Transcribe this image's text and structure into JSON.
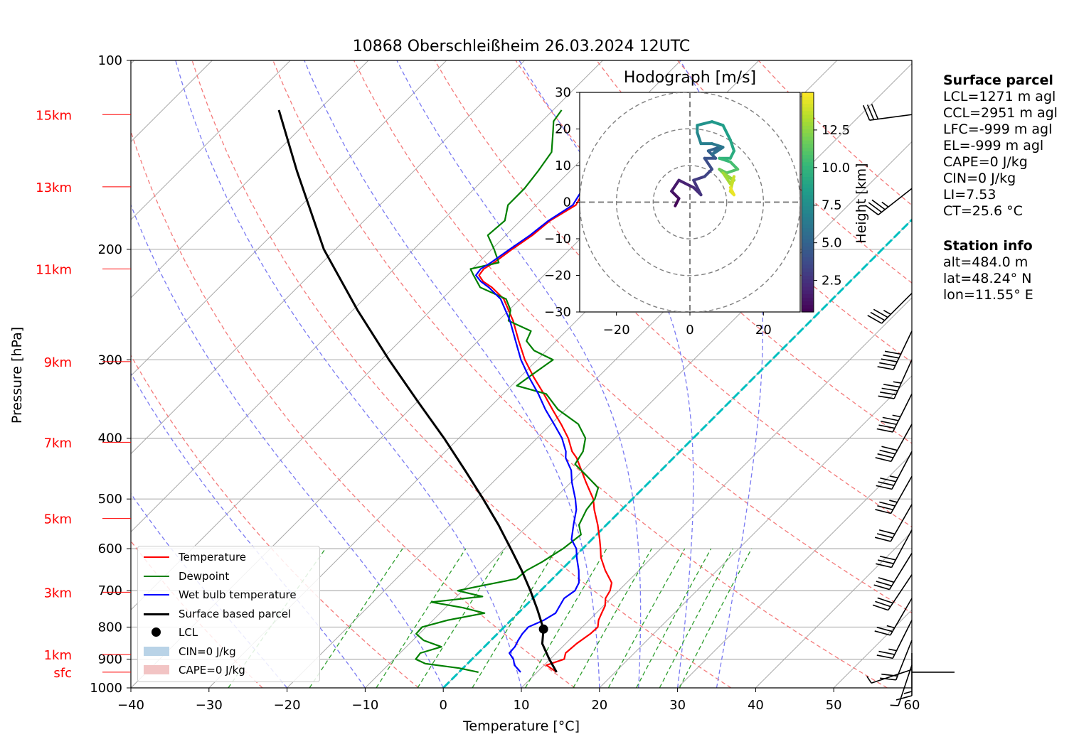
{
  "title": "10868 Oberschleißheim 26.03.2024 12UTC",
  "axes": {
    "xlabel": "Temperature [°C]",
    "ylabel": "Pressure [hPa]",
    "xlim": [
      -40,
      60
    ],
    "ylim": [
      1000,
      100
    ],
    "xticks": [
      "−40",
      "−30",
      "−20",
      "−10",
      "0",
      "10",
      "20",
      "30",
      "40",
      "50",
      "60"
    ],
    "yticks": [
      {
        "p": 100,
        "label": "100"
      },
      {
        "p": 200,
        "label": "200"
      },
      {
        "p": 300,
        "label": "300"
      },
      {
        "p": 400,
        "label": "400"
      },
      {
        "p": 500,
        "label": "500"
      },
      {
        "p": 600,
        "label": "600"
      },
      {
        "p": 700,
        "label": "700"
      },
      {
        "p": 800,
        "label": "800"
      },
      {
        "p": 900,
        "label": "900"
      },
      {
        "p": 1000,
        "label": "1000"
      }
    ],
    "height_labels": [
      {
        "label": "15km",
        "p": 122
      },
      {
        "label": "13km",
        "p": 159
      },
      {
        "label": "11km",
        "p": 215
      },
      {
        "label": "9km",
        "p": 302
      },
      {
        "label": "7km",
        "p": 406
      },
      {
        "label": "5km",
        "p": 537
      },
      {
        "label": "3km",
        "p": 704
      },
      {
        "label": "1km",
        "p": 885
      },
      {
        "label": "sfc",
        "p": 944
      }
    ]
  },
  "chart_data": [
    {
      "type": "line",
      "title": "10868 Oberschleißheim 26.03.2024 12UTC",
      "xlabel": "Temperature [°C]",
      "ylabel": "Pressure [hPa]",
      "log_y": true,
      "skew": "skew-T log-p",
      "grid": true,
      "legend_placement": "lower-left",
      "series": [
        {
          "name": "Temperature",
          "color": "#ff0000",
          "p": [
            944,
            920,
            900,
            880,
            850,
            820,
            800,
            780,
            760,
            740,
            720,
            700,
            680,
            650,
            620,
            600,
            580,
            550,
            520,
            500,
            470,
            450,
            430,
            420,
            400,
            380,
            360,
            340,
            320,
            300,
            280,
            260,
            240,
            230,
            225,
            220,
            215,
            210,
            200,
            190,
            180,
            170,
            160,
            150,
            140,
            130,
            125,
            120
          ],
          "t": [
            12.5,
            10.3,
            11.8,
            11.2,
            11.4,
            11.9,
            12.0,
            11.2,
            10.7,
            10.2,
            9.3,
            8.9,
            8.1,
            5.7,
            3.5,
            2.3,
            1.0,
            -1.1,
            -3.5,
            -5.0,
            -8.1,
            -10.2,
            -12.4,
            -13.8,
            -16.0,
            -18.7,
            -21.7,
            -24.8,
            -28.2,
            -31.6,
            -34.8,
            -38.1,
            -42.1,
            -45.1,
            -47.0,
            -48.3,
            -48.5,
            -48.0,
            -47.4,
            -46.6,
            -46.2,
            -44.9,
            -45.8,
            -46.3,
            -45.8,
            -45.2,
            -45.1,
            -44.6
          ]
        },
        {
          "name": "Dewpoint",
          "color": "#008000",
          "p": [
            944,
            930,
            915,
            900,
            880,
            860,
            840,
            820,
            800,
            780,
            760,
            745,
            730,
            715,
            700,
            690,
            670,
            650,
            630,
            600,
            570,
            550,
            520,
            500,
            480,
            460,
            440,
            420,
            400,
            380,
            360,
            340,
            330,
            320,
            300,
            290,
            280,
            270,
            260,
            250,
            240,
            230,
            220,
            215,
            210,
            200,
            190,
            180,
            170,
            160,
            150,
            140,
            130,
            125,
            120
          ],
          "t": [
            2.5,
            -0.5,
            -5.4,
            -7.2,
            -7.4,
            -5.5,
            -8.6,
            -10.4,
            -10.5,
            -8.1,
            -4.3,
            -7.8,
            -12.5,
            -6.7,
            -10.6,
            -8.7,
            -4.6,
            -4.4,
            -3.5,
            -2.5,
            -2.0,
            -3.5,
            -4.5,
            -4.8,
            -5.8,
            -8.7,
            -11.8,
            -12.4,
            -13.8,
            -16.5,
            -21.0,
            -24.5,
            -29.3,
            -28.9,
            -28.0,
            -31.6,
            -33.8,
            -34.5,
            -38.7,
            -39.8,
            -41.8,
            -46.6,
            -49.0,
            -50.2,
            -47.4,
            -49.7,
            -52.3,
            -52.0,
            -53.6,
            -53.6,
            -54.1,
            -54.8,
            -57.2,
            -58.5,
            -58.9
          ]
        },
        {
          "name": "Wet bulb temperature",
          "color": "#0000ff",
          "p": [
            944,
            920,
            900,
            880,
            860,
            840,
            820,
            800,
            780,
            760,
            740,
            720,
            700,
            680,
            650,
            620,
            600,
            580,
            550,
            520,
            500,
            470,
            450,
            430,
            420,
            400,
            380,
            360,
            340,
            320,
            300,
            280,
            260,
            240,
            230,
            225,
            220,
            215,
            210,
            200,
            190,
            180,
            170,
            160,
            150,
            140,
            130,
            125,
            120
          ],
          "t": [
            7.9,
            6.2,
            5.3,
            4.0,
            3.9,
            3.5,
            3.2,
            3.1,
            4.2,
            4.8,
            4.4,
            4.0,
            4.4,
            3.9,
            2.3,
            0.4,
            -0.8,
            -2.6,
            -4.2,
            -5.8,
            -7.3,
            -9.9,
            -11.5,
            -13.8,
            -14.6,
            -16.8,
            -19.6,
            -22.6,
            -25.5,
            -28.8,
            -32.1,
            -35.2,
            -38.5,
            -42.5,
            -45.5,
            -47.3,
            -48.7,
            -48.9,
            -48.4,
            -47.7,
            -46.9,
            -46.4,
            -45.3,
            -46.1,
            -46.6,
            -46.2,
            -45.6,
            -45.4,
            -44.9
          ]
        },
        {
          "name": "Surface based parcel",
          "color": "#000000",
          "p": [
            944,
            900,
            850,
            806,
            780,
            750,
            700,
            650,
            600,
            550,
            500,
            450,
            400,
            350,
            300,
            250,
            200,
            150,
            120
          ],
          "t": [
            12.5,
            9.9,
            7.0,
            5.3,
            3.8,
            2.0,
            -1.3,
            -5.0,
            -9.2,
            -13.8,
            -19.1,
            -25.1,
            -31.9,
            -39.9,
            -49.0,
            -59.4,
            -71.5,
            -85.0,
            -95.1
          ]
        },
        {
          "name": "LCL",
          "p": [
            806
          ],
          "t": [
            5.3
          ]
        },
        {
          "name": "CIN=0 J/kg",
          "color": "#1f77b4",
          "values": []
        },
        {
          "name": "CAPE=0 J/kg",
          "color": "#d62728",
          "values": []
        }
      ],
      "wind_barbs": [
        {
          "p": 944,
          "u": -1,
          "v": 0
        },
        {
          "p": 935,
          "u": 3,
          "v": 1
        },
        {
          "p": 920,
          "u": 1,
          "v": 3
        },
        {
          "p": 880,
          "u": 0,
          "v": 7
        },
        {
          "p": 840,
          "u": 4,
          "v": 10
        },
        {
          "p": 780,
          "u": 6,
          "v": 12
        },
        {
          "p": 720,
          "u": 7,
          "v": 12
        },
        {
          "p": 660,
          "u": 8,
          "v": 12
        },
        {
          "p": 610,
          "u": 8,
          "v": 13
        },
        {
          "p": 560,
          "u": 7,
          "v": 13
        },
        {
          "p": 510,
          "u": 8,
          "v": 14
        },
        {
          "p": 460,
          "u": 9,
          "v": 16
        },
        {
          "p": 420,
          "u": 9,
          "v": 17
        },
        {
          "p": 380,
          "u": 10,
          "v": 18
        },
        {
          "p": 340,
          "u": 10,
          "v": 20
        },
        {
          "p": 300,
          "u": 10,
          "v": 22
        },
        {
          "p": 270,
          "u": 11,
          "v": 23
        },
        {
          "p": 235,
          "u": 13,
          "v": 13
        },
        {
          "p": 160,
          "u": 14,
          "v": 11
        },
        {
          "p": 122,
          "u": 15,
          "v": 2
        }
      ],
      "dry_adiabat_thetas_k": [
        250,
        270,
        290,
        310,
        330,
        350,
        370,
        390,
        410,
        430,
        450
      ],
      "moist_adiabat_start_c": [
        -20,
        -10,
        0,
        10,
        20,
        25,
        30,
        35
      ],
      "mixing_ratios_gkg": [
        0.4,
        1,
        2,
        3,
        5,
        8,
        12,
        16,
        20,
        24,
        28
      ]
    },
    {
      "type": "scatter",
      "title": "Hodograph [m/s]",
      "xlim": [
        -30,
        30
      ],
      "ylim": [
        -30,
        30
      ],
      "xticks": [
        "−20",
        "0",
        "20"
      ],
      "yticks": [
        "30",
        "20",
        "10",
        "0",
        "−10",
        "−20",
        "−30"
      ],
      "rings": [
        10,
        20,
        30
      ],
      "colorbar_label": "Height [km]",
      "colorbar_ticks": [
        "2.5",
        "5.0",
        "7.5",
        "10.0",
        "12.5"
      ],
      "colorbar_range": [
        0.4,
        15
      ],
      "colormap": "viridis",
      "points": [
        {
          "u": -4,
          "v": -1,
          "h": 0.4
        },
        {
          "u": -3,
          "v": 1,
          "h": 0.8
        },
        {
          "u": -5,
          "v": 3,
          "h": 1.2
        },
        {
          "u": -3,
          "v": 6,
          "h": 1.6
        },
        {
          "u": 1,
          "v": 4,
          "h": 2.0
        },
        {
          "u": 3,
          "v": 2,
          "h": 2.4
        },
        {
          "u": 1,
          "v": 6,
          "h": 2.8
        },
        {
          "u": 4,
          "v": 7,
          "h": 3.2
        },
        {
          "u": 6,
          "v": 9,
          "h": 3.6
        },
        {
          "u": 4,
          "v": 12,
          "h": 4.0
        },
        {
          "u": 7,
          "v": 12,
          "h": 4.4
        },
        {
          "u": 5,
          "v": 14,
          "h": 4.8
        },
        {
          "u": 8,
          "v": 15,
          "h": 5.2
        },
        {
          "u": 6,
          "v": 13,
          "h": 5.6
        },
        {
          "u": 9,
          "v": 15,
          "h": 6.0
        },
        {
          "u": 6,
          "v": 16,
          "h": 6.4
        },
        {
          "u": 3,
          "v": 16,
          "h": 6.8
        },
        {
          "u": 2,
          "v": 19,
          "h": 7.2
        },
        {
          "u": 2,
          "v": 21,
          "h": 7.6
        },
        {
          "u": 6,
          "v": 22,
          "h": 8.0
        },
        {
          "u": 9,
          "v": 21,
          "h": 8.4
        },
        {
          "u": 11,
          "v": 17,
          "h": 8.8
        },
        {
          "u": 12,
          "v": 14,
          "h": 9.2
        },
        {
          "u": 11,
          "v": 12,
          "h": 9.6
        },
        {
          "u": 8,
          "v": 12,
          "h": 10.0
        },
        {
          "u": 11,
          "v": 11,
          "h": 10.4
        },
        {
          "u": 13,
          "v": 9,
          "h": 10.8
        },
        {
          "u": 10,
          "v": 8,
          "h": 11.2
        },
        {
          "u": 8,
          "v": 9,
          "h": 11.6
        },
        {
          "u": 10,
          "v": 7,
          "h": 12.0
        },
        {
          "u": 12,
          "v": 6,
          "h": 12.4
        },
        {
          "u": 9,
          "v": 8,
          "h": 12.8
        },
        {
          "u": 11,
          "v": 5,
          "h": 13.2
        },
        {
          "u": 12,
          "v": 7,
          "h": 13.6
        },
        {
          "u": 11,
          "v": 3,
          "h": 14.0
        },
        {
          "u": 12,
          "v": 2,
          "h": 14.4
        },
        {
          "u": 11,
          "v": 4,
          "h": 14.8
        }
      ]
    }
  ],
  "legend": [
    {
      "label": "Temperature",
      "kind": "line",
      "color": "#ff0000"
    },
    {
      "label": "Dewpoint",
      "kind": "line",
      "color": "#008000"
    },
    {
      "label": "Wet bulb temperature",
      "kind": "line",
      "color": "#0000ff"
    },
    {
      "label": "Surface based parcel",
      "kind": "line",
      "color": "#000000"
    },
    {
      "label": "LCL",
      "kind": "dot",
      "color": "#000000"
    },
    {
      "label": "CIN=0 J/kg",
      "kind": "patch",
      "color": "#b9d3e7"
    },
    {
      "label": "CAPE=0 J/kg",
      "kind": "patch",
      "color": "#f2c4c4"
    }
  ],
  "info": {
    "surface_header": "Surface parcel",
    "surface_lines": [
      "LCL=1271 m agl",
      "CCL=2951 m agl",
      "LFC=-999 m agl",
      "EL=-999 m agl",
      "CAPE=0 J/kg",
      "CIN=0 J/kg",
      "LI=7.53",
      "CT=25.6 °C"
    ],
    "station_header": "Station info",
    "station_lines": [
      "alt=484.0 m",
      "lat=48.24° N",
      "lon=11.55° E"
    ]
  }
}
